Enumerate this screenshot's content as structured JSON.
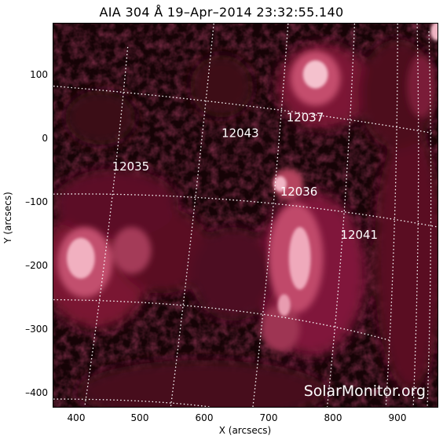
{
  "title": "AIA 304 Å 19–Apr–2014 23:32:55.140",
  "x_axis": {
    "title": "X (arcsecs)",
    "ticks": [
      "400",
      "500",
      "600",
      "700",
      "800",
      "900"
    ]
  },
  "y_axis": {
    "title": "Y (arcsecs)",
    "ticks": [
      "100",
      "0",
      "–100",
      "–200",
      "–300",
      "–400"
    ]
  },
  "regions": [
    "12037",
    "12043",
    "12035",
    "12036",
    "12041"
  ],
  "watermark": "SolarMonitor.org",
  "colors": {
    "background": "#ffffff",
    "sun_dark": "#120204",
    "sun_mid": "#6b0f25",
    "sun_bright": "#f3b9c6",
    "grid": "#ffffff"
  }
}
